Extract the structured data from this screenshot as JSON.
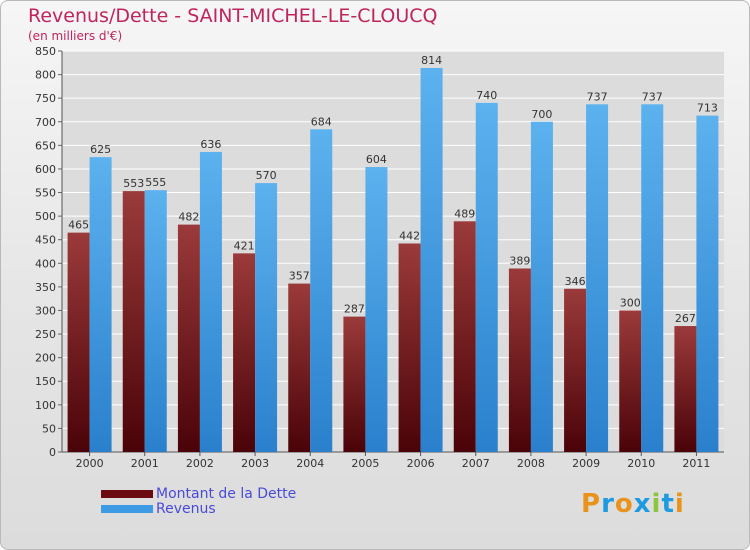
{
  "chart_data": {
    "type": "bar",
    "title": "Revenus/Dette - SAINT-MICHEL-LE-CLOUCQ",
    "subtitle": "(en milliers d'€)",
    "xlabel": "",
    "ylabel": "",
    "ylim": [
      0,
      850
    ],
    "yticks": [
      "0",
      "50",
      "100",
      "150",
      "200",
      "250",
      "300",
      "350",
      "400",
      "450",
      "500",
      "550",
      "600",
      "650",
      "700",
      "750",
      "800",
      "850"
    ],
    "grid": true,
    "categories": [
      "2000",
      "2001",
      "2002",
      "2003",
      "2004",
      "2005",
      "2006",
      "2007",
      "2008",
      "2009",
      "2010",
      "2011"
    ],
    "series": [
      {
        "name": "Montant de la Dette",
        "color": "#7a1a20",
        "values": [
          465,
          553,
          482,
          421,
          357,
          287,
          442,
          489,
          389,
          346,
          300,
          267
        ]
      },
      {
        "name": "Revenus",
        "color": "#3d9be6",
        "values": [
          625,
          555,
          636,
          570,
          684,
          604,
          814,
          740,
          700,
          737,
          737,
          713
        ]
      }
    ],
    "legend_position": "bottom-left"
  },
  "legend": {
    "debt_label": "Montant de la Dette",
    "revenue_label": "Revenus",
    "debt_color": "#6b0a10",
    "revenue_color": "#3d9be6"
  },
  "logo": {
    "letters": [
      "P",
      "r",
      "o",
      "x",
      "i",
      "t",
      "i"
    ],
    "colors": [
      "#e8931c",
      "#1e9be0",
      "#e8931c",
      "#1e9be0",
      "#8cc63e",
      "#1e9be0",
      "#e8931c"
    ]
  }
}
